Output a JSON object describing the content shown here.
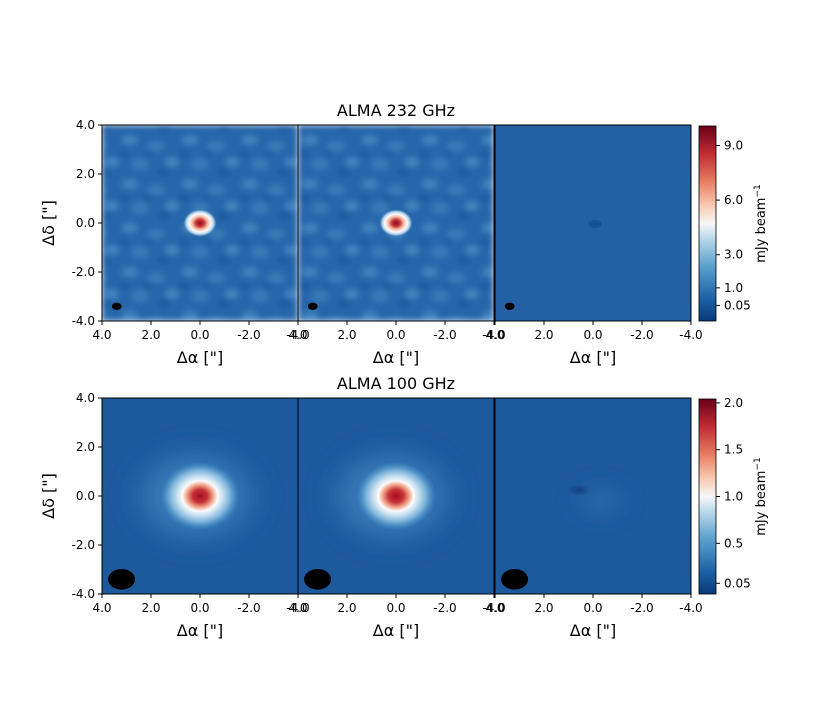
{
  "chart_data": [
    {
      "type": "heatmap",
      "title": "ALMA 232 GHz",
      "xlabel": "Δα [\"]",
      "ylabel": "Δδ [\"]",
      "xlim": [
        4.0,
        -4.0
      ],
      "ylim": [
        -4.0,
        4.0
      ],
      "x_ticks": [
        "4.0",
        "2.0",
        "0.0",
        "-2.0",
        "-4.0"
      ],
      "y_ticks": [
        "4.0",
        "2.0",
        "0.0",
        "-2.0",
        "-4.0"
      ],
      "panels": 3,
      "colorbar": {
        "label_main": "mJy beam",
        "label_sup": "−1",
        "colormap": "RdBu_r",
        "range": [
          0,
          10
        ],
        "ticks": [
          {
            "label": "9.0",
            "frac": 0.9
          },
          {
            "label": "6.0",
            "frac": 0.62
          },
          {
            "label": "3.0",
            "frac": 0.34
          },
          {
            "label": "1.0",
            "frac": 0.17
          },
          {
            "label": "0.05",
            "frac": 0.08
          }
        ]
      },
      "beam": {
        "dx": 3.4,
        "dy": -3.4,
        "rx": 0.2,
        "ry": 0.15
      },
      "source": {
        "x": 0.0,
        "y": 0.0,
        "peak_mJy": 10.0
      }
    },
    {
      "type": "heatmap",
      "title": "ALMA 100 GHz",
      "xlabel": "Δα [\"]",
      "ylabel": "Δδ [\"]",
      "xlim": [
        4.0,
        -4.0
      ],
      "ylim": [
        -4.0,
        4.0
      ],
      "x_ticks": [
        "4.0",
        "2.0",
        "0.0",
        "-2.0",
        "-4.0"
      ],
      "y_ticks": [
        "4.0",
        "2.0",
        "0.0",
        "-2.0",
        "-4.0"
      ],
      "panels": 3,
      "colorbar": {
        "label_main": "mJy beam",
        "label_sup": "−1",
        "colormap": "RdBu_r",
        "range": [
          0,
          2.05
        ],
        "ticks": [
          {
            "label": "2.0",
            "frac": 0.98
          },
          {
            "label": "1.5",
            "frac": 0.74
          },
          {
            "label": "1.0",
            "frac": 0.5
          },
          {
            "label": "0.5",
            "frac": 0.26
          },
          {
            "label": "0.05",
            "frac": 0.055
          }
        ]
      },
      "beam": {
        "dx": 3.2,
        "dy": -3.4,
        "rx": 0.55,
        "ry": 0.42
      },
      "source": {
        "x": 0.0,
        "y": 0.0,
        "peak_mJy": 2.0
      }
    }
  ]
}
